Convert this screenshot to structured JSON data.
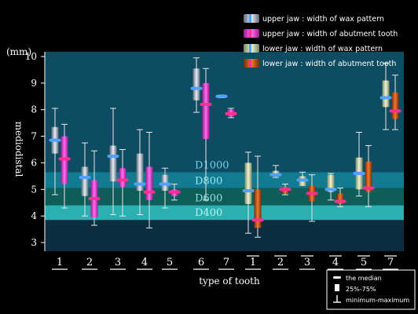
{
  "chart_data": {
    "type": "box",
    "y_unit": "(mm)",
    "ylabel": "mediodistal",
    "xlabel": "type of tooth",
    "ylim": [
      2.5,
      10.2
    ],
    "yticks": [
      3,
      4,
      5,
      6,
      7,
      8,
      9,
      10
    ],
    "bands": [
      {
        "label": "D1000",
        "from": 5.65,
        "to": 10.2
      },
      {
        "label": "D800",
        "from": 5.05,
        "to": 5.65
      },
      {
        "label": "D600",
        "from": 4.4,
        "to": 5.05
      },
      {
        "label": "D400",
        "from": 3.85,
        "to": 4.4
      }
    ],
    "series": [
      {
        "name": "upper jaw : width of wax pattern",
        "color": "#9aa8bc",
        "median_color": "#4fa3ff"
      },
      {
        "name": "upper jaw : width of abutment tooth",
        "color": "#e040d0",
        "median_color": "#ff3090"
      },
      {
        "name": "lower jaw : width of wax pattern",
        "color": "#b8caa0",
        "median_color": "#4fa3ff"
      },
      {
        "name": "lower jaw : width of abutment tooth",
        "color": "#c0501a",
        "median_color": "#ff3090"
      }
    ],
    "groups": [
      {
        "label": "1",
        "jaw": "upper",
        "boxes": [
          {
            "series": 0,
            "min": 4.8,
            "q1": 6.35,
            "median": 6.85,
            "q3": 7.35,
            "max": 8.05
          },
          {
            "series": 1,
            "min": 4.3,
            "q1": 5.2,
            "median": 6.15,
            "q3": 7.0,
            "max": 7.45
          }
        ]
      },
      {
        "label": "2",
        "jaw": "upper",
        "boxes": [
          {
            "series": 0,
            "min": 4.0,
            "q1": 4.75,
            "median": 5.45,
            "q3": 5.85,
            "max": 6.75
          },
          {
            "series": 1,
            "min": 3.65,
            "q1": 3.95,
            "median": 4.65,
            "q3": 5.35,
            "max": 6.45
          }
        ]
      },
      {
        "label": "3",
        "jaw": "upper",
        "boxes": [
          {
            "series": 0,
            "min": 4.05,
            "q1": 5.3,
            "median": 6.25,
            "q3": 6.65,
            "max": 8.05
          },
          {
            "series": 1,
            "min": 4.0,
            "q1": 5.1,
            "median": 5.35,
            "q3": 5.8,
            "max": 6.5
          }
        ]
      },
      {
        "label": "4",
        "jaw": "upper",
        "boxes": [
          {
            "series": 0,
            "min": 4.05,
            "q1": 4.95,
            "median": 5.2,
            "q3": 6.35,
            "max": 7.25
          },
          {
            "series": 1,
            "min": 3.55,
            "q1": 4.6,
            "median": 4.9,
            "q3": 5.85,
            "max": 7.15
          }
        ]
      },
      {
        "label": "5",
        "jaw": "upper",
        "boxes": [
          {
            "series": 0,
            "min": 4.3,
            "q1": 4.95,
            "median": 5.2,
            "q3": 5.55,
            "max": 5.8
          },
          {
            "series": 1,
            "min": 4.6,
            "q1": 4.75,
            "median": 4.9,
            "q3": 5.0,
            "max": 5.2
          }
        ]
      },
      {
        "label": "6",
        "jaw": "upper",
        "boxes": [
          {
            "series": 0,
            "min": 7.9,
            "q1": 8.35,
            "median": 8.8,
            "q3": 9.55,
            "max": 9.95
          },
          {
            "series": 1,
            "min": 4.6,
            "q1": 6.9,
            "median": 8.2,
            "q3": 9.0,
            "max": 9.55
          }
        ]
      },
      {
        "label": "7",
        "jaw": "upper",
        "boxes": [
          {
            "series": 0,
            "min": 8.45,
            "q1": 8.45,
            "median": 8.5,
            "q3": 8.55,
            "max": 8.55
          },
          {
            "series": 1,
            "min": 7.7,
            "q1": 7.75,
            "median": 7.85,
            "q3": 8.0,
            "max": 8.05
          }
        ]
      },
      {
        "label": "1",
        "jaw": "lower",
        "boxes": [
          {
            "series": 2,
            "min": 3.35,
            "q1": 4.45,
            "median": 4.95,
            "q3": 6.0,
            "max": 6.4
          },
          {
            "series": 3,
            "min": 3.2,
            "q1": 3.55,
            "median": 3.85,
            "q3": 5.0,
            "max": 6.25
          }
        ]
      },
      {
        "label": "2",
        "jaw": "lower",
        "boxes": [
          {
            "series": 2,
            "min": 5.45,
            "q1": 5.5,
            "median": 5.55,
            "q3": 5.7,
            "max": 5.9
          },
          {
            "series": 3,
            "min": 4.8,
            "q1": 4.85,
            "median": 5.0,
            "q3": 5.1,
            "max": 5.2
          }
        ]
      },
      {
        "label": "3",
        "jaw": "lower",
        "boxes": [
          {
            "series": 2,
            "min": 5.15,
            "q1": 5.15,
            "median": 5.35,
            "q3": 5.5,
            "max": 5.65
          },
          {
            "series": 3,
            "min": 3.8,
            "q1": 4.55,
            "median": 4.85,
            "q3": 5.15,
            "max": 5.55
          }
        ]
      },
      {
        "label": "4",
        "jaw": "lower",
        "boxes": [
          {
            "series": 2,
            "min": 4.6,
            "q1": 4.9,
            "median": 5.0,
            "q3": 5.55,
            "max": 5.6
          },
          {
            "series": 3,
            "min": 4.35,
            "q1": 4.45,
            "median": 4.55,
            "q3": 4.85,
            "max": 5.05
          }
        ]
      },
      {
        "label": "5",
        "jaw": "lower",
        "boxes": [
          {
            "series": 2,
            "min": 4.75,
            "q1": 5.0,
            "median": 5.6,
            "q3": 6.2,
            "max": 7.15
          },
          {
            "series": 3,
            "min": 4.35,
            "q1": 4.9,
            "median": 5.05,
            "q3": 6.05,
            "max": 6.65
          }
        ]
      },
      {
        "label": "7",
        "jaw": "lower",
        "boxes": [
          {
            "series": 2,
            "min": 7.25,
            "q1": 8.1,
            "median": 8.45,
            "q3": 9.1,
            "max": 9.75
          },
          {
            "series": 3,
            "min": 7.25,
            "q1": 7.65,
            "median": 7.95,
            "q3": 8.65,
            "max": 9.3
          }
        ]
      }
    ],
    "key": [
      "the median",
      "25%-75%",
      "minimum-maximum"
    ]
  }
}
